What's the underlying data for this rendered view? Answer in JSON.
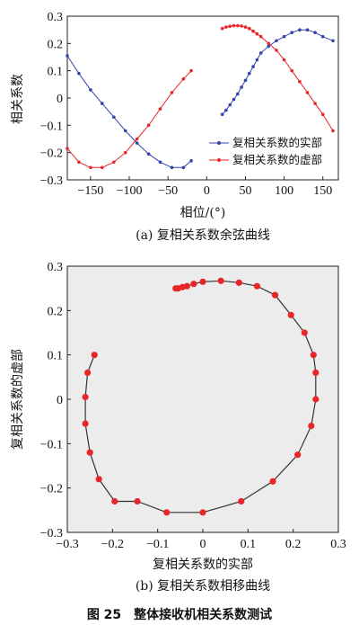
{
  "figure_caption": "图 25　整体接收机相关系数测试",
  "colors": {
    "blue": "#3344aa",
    "red": "#e8262a",
    "black": "#222222",
    "curve": "#333333"
  },
  "chart_data": [
    {
      "type": "line",
      "caption": "(a) 复相关系数余弦曲线",
      "xlabel": "相位/(°)",
      "ylabel": "相关系数",
      "xlim": [
        -180,
        170
      ],
      "ylim": [
        -0.3,
        0.3
      ],
      "xticks": [
        -150,
        -100,
        -50,
        0,
        50,
        100,
        150
      ],
      "xtick_labels": [
        "−150",
        "−100",
        "−50",
        "0",
        "50",
        "100",
        "150"
      ],
      "yticks": [
        -0.3,
        -0.2,
        -0.1,
        0,
        0.1,
        0.2,
        0.3
      ],
      "ytick_labels": [
        "−0.3",
        "−0.2",
        "−0.1",
        "0",
        "0.1",
        "0.2",
        "0.3"
      ],
      "legend_position": "lower-right",
      "series": [
        {
          "name": "复相关系数的实部",
          "color": "#3344aa",
          "segments": [
            [
              [
                -180,
                0.155
              ],
              [
                -165,
                0.09
              ],
              [
                -150,
                0.03
              ],
              [
                -135,
                -0.02
              ],
              [
                -120,
                -0.07
              ],
              [
                -105,
                -0.12
              ],
              [
                -90,
                -0.165
              ],
              [
                -75,
                -0.205
              ],
              [
                -60,
                -0.235
              ],
              [
                -45,
                -0.255
              ],
              [
                -30,
                -0.255
              ],
              [
                -20,
                -0.23
              ]
            ],
            [
              [
                20,
                -0.06
              ],
              [
                25,
                -0.045
              ],
              [
                30,
                -0.025
              ],
              [
                35,
                -0.005
              ],
              [
                40,
                0.015
              ],
              [
                45,
                0.04
              ],
              [
                50,
                0.065
              ],
              [
                55,
                0.09
              ],
              [
                60,
                0.115
              ],
              [
                65,
                0.14
              ],
              [
                70,
                0.165
              ],
              [
                80,
                0.19
              ],
              [
                90,
                0.21
              ],
              [
                100,
                0.225
              ],
              [
                110,
                0.24
              ],
              [
                120,
                0.25
              ],
              [
                130,
                0.25
              ],
              [
                140,
                0.24
              ],
              [
                150,
                0.225
              ],
              [
                163,
                0.21
              ]
            ]
          ]
        },
        {
          "name": "复相关系数的虚部",
          "color": "#e8262a",
          "segments": [
            [
              [
                -180,
                -0.185
              ],
              [
                -165,
                -0.235
              ],
              [
                -150,
                -0.255
              ],
              [
                -135,
                -0.255
              ],
              [
                -120,
                -0.235
              ],
              [
                -105,
                -0.2
              ],
              [
                -90,
                -0.15
              ],
              [
                -75,
                -0.1
              ],
              [
                -60,
                -0.04
              ],
              [
                -45,
                0.02
              ],
              [
                -30,
                0.07
              ],
              [
                -20,
                0.1
              ]
            ],
            [
              [
                20,
                0.255
              ],
              [
                25,
                0.26
              ],
              [
                30,
                0.263
              ],
              [
                35,
                0.265
              ],
              [
                40,
                0.265
              ],
              [
                45,
                0.264
              ],
              [
                50,
                0.26
              ],
              [
                55,
                0.255
              ],
              [
                60,
                0.245
              ],
              [
                65,
                0.235
              ],
              [
                70,
                0.225
              ],
              [
                80,
                0.2
              ],
              [
                90,
                0.175
              ],
              [
                100,
                0.14
              ],
              [
                110,
                0.1
              ],
              [
                120,
                0.06
              ],
              [
                130,
                0.02
              ],
              [
                140,
                -0.02
              ],
              [
                150,
                -0.06
              ],
              [
                163,
                -0.12
              ]
            ]
          ]
        }
      ]
    },
    {
      "type": "scatter",
      "caption": "(b) 复相关系数相移曲线",
      "xlabel": "复相关系数的实部",
      "ylabel": "复相关系数的虚部",
      "xlim": [
        -0.3,
        0.3
      ],
      "ylim": [
        -0.3,
        0.3
      ],
      "xticks": [
        -0.3,
        -0.2,
        -0.1,
        0,
        0.1,
        0.2,
        0.3
      ],
      "xtick_labels": [
        "−0.3",
        "−0.2",
        "−0.1",
        "0",
        "0.1",
        "0.2",
        "0.3"
      ],
      "yticks": [
        -0.3,
        -0.2,
        -0.1,
        0,
        0.1,
        0.2,
        0.3
      ],
      "ytick_labels": [
        "−0.3",
        "−0.2",
        "−0.1",
        "0",
        "0.1",
        "0.2",
        "0.3"
      ],
      "point_color": "#e8262a",
      "points": [
        [
          -0.24,
          0.1
        ],
        [
          -0.255,
          0.06
        ],
        [
          -0.26,
          0.005
        ],
        [
          -0.26,
          -0.055
        ],
        [
          -0.25,
          -0.12
        ],
        [
          -0.23,
          -0.18
        ],
        [
          -0.195,
          -0.23
        ],
        [
          -0.145,
          -0.23
        ],
        [
          -0.08,
          -0.255
        ],
        [
          0.0,
          -0.255
        ],
        [
          0.085,
          -0.23
        ],
        [
          0.155,
          -0.185
        ],
        [
          0.21,
          -0.125
        ],
        [
          0.24,
          -0.06
        ],
        [
          0.25,
          0.0
        ],
        [
          0.25,
          0.06
        ],
        [
          0.245,
          0.1
        ],
        [
          0.225,
          0.15
        ],
        [
          0.195,
          0.19
        ],
        [
          0.16,
          0.235
        ],
        [
          0.12,
          0.255
        ],
        [
          0.08,
          0.263
        ],
        [
          0.04,
          0.267
        ],
        [
          0.0,
          0.265
        ],
        [
          -0.02,
          0.26
        ],
        [
          -0.035,
          0.255
        ],
        [
          -0.045,
          0.253
        ],
        [
          -0.055,
          0.25
        ],
        [
          -0.06,
          0.25
        ]
      ]
    }
  ]
}
